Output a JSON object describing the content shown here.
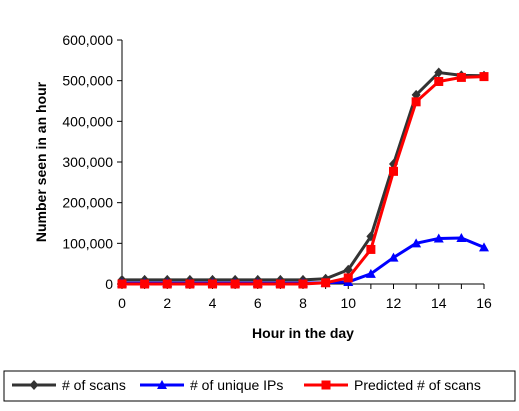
{
  "chart_data": {
    "type": "line",
    "title": "",
    "xlabel": "Hour in the day",
    "ylabel": "Number seen in an hour",
    "x": [
      0,
      1,
      2,
      3,
      4,
      5,
      6,
      7,
      8,
      9,
      10,
      11,
      12,
      13,
      14,
      15,
      16
    ],
    "xticks": [
      0,
      2,
      4,
      6,
      8,
      10,
      12,
      14,
      16
    ],
    "xtick_labels": [
      "0",
      "2",
      "4",
      "6",
      "8",
      "10",
      "12",
      "14",
      "16"
    ],
    "xlim": [
      0,
      16
    ],
    "ylim": [
      0,
      600000
    ],
    "yticks": [
      0,
      100000,
      200000,
      300000,
      400000,
      500000,
      600000
    ],
    "ytick_labels": [
      "0",
      "100,000",
      "200,000",
      "300,000",
      "400,000",
      "500,000",
      "600,000"
    ],
    "grid": false,
    "legend_position": "bottom",
    "series": [
      {
        "name": "# of scans",
        "color": "#333333",
        "marker": "diamond",
        "values": [
          10000,
          10000,
          10000,
          10000,
          10000,
          10000,
          10000,
          10000,
          10000,
          13000,
          35000,
          117000,
          295000,
          465000,
          520000,
          513000,
          512000
        ]
      },
      {
        "name": "# of unique IPs",
        "color": "#0000ff",
        "marker": "triangle",
        "values": [
          2000,
          2000,
          2000,
          2000,
          2000,
          2000,
          2000,
          2000,
          2000,
          3000,
          5000,
          25000,
          65000,
          100000,
          112000,
          113000,
          90000
        ]
      },
      {
        "name": "Predicted # of scans",
        "color": "#ff0000",
        "marker": "square",
        "values": [
          0,
          0,
          0,
          0,
          0,
          0,
          0,
          0,
          0,
          3000,
          15000,
          85000,
          277000,
          448000,
          498000,
          508000,
          510000
        ]
      }
    ]
  }
}
